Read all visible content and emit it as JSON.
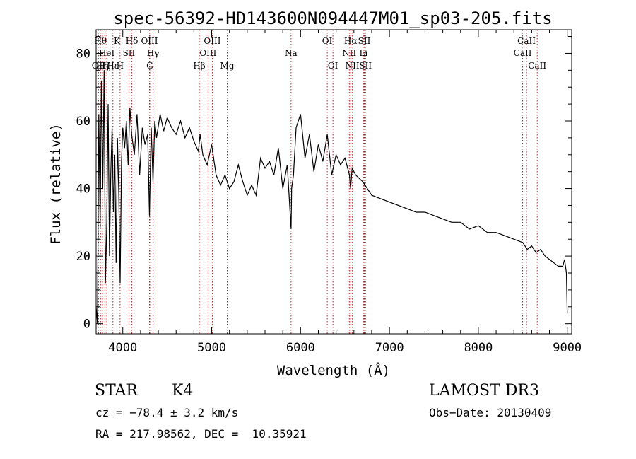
{
  "chart_data": {
    "type": "line",
    "title": "spec-56392-HD143600N094447M01_sp03-205.fits",
    "xlabel": "Wavelength (Å)",
    "ylabel": "Flux (relative)",
    "xlim": [
      3700,
      9050
    ],
    "ylim": [
      -3,
      87
    ],
    "xticks": [
      4000,
      5000,
      6000,
      7000,
      8000,
      9000
    ],
    "yticks": [
      0,
      20,
      40,
      60,
      80
    ],
    "grid": false,
    "line_color": "#000000",
    "marker_color": "#b22222",
    "spectrum": {
      "x": [
        3700,
        3715,
        3730,
        3745,
        3760,
        3775,
        3790,
        3805,
        3820,
        3835,
        3850,
        3865,
        3880,
        3895,
        3910,
        3925,
        3940,
        3955,
        3970,
        3985,
        4000,
        4020,
        4040,
        4060,
        4080,
        4100,
        4130,
        4160,
        4190,
        4220,
        4250,
        4280,
        4300,
        4320,
        4340,
        4360,
        4380,
        4420,
        4460,
        4500,
        4550,
        4600,
        4650,
        4700,
        4750,
        4800,
        4850,
        4870,
        4900,
        4950,
        5000,
        5050,
        5100,
        5150,
        5200,
        5250,
        5300,
        5350,
        5400,
        5450,
        5500,
        5550,
        5600,
        5650,
        5700,
        5750,
        5800,
        5850,
        5880,
        5893,
        5900,
        5920,
        5950,
        6000,
        6050,
        6100,
        6150,
        6200,
        6250,
        6300,
        6350,
        6400,
        6450,
        6500,
        6550,
        6563,
        6580,
        6620,
        6700,
        6800,
        6900,
        7000,
        7100,
        7200,
        7300,
        7400,
        7500,
        7600,
        7700,
        7800,
        7900,
        8000,
        8100,
        8200,
        8300,
        8400,
        8500,
        8550,
        8600,
        8650,
        8700,
        8750,
        8800,
        8850,
        8900,
        8950,
        8970,
        8990,
        9000
      ],
      "y": [
        5,
        0,
        62,
        28,
        72,
        40,
        75,
        12,
        30,
        65,
        20,
        45,
        58,
        33,
        50,
        18,
        55,
        38,
        12,
        48,
        58,
        52,
        60,
        47,
        64,
        56,
        50,
        62,
        44,
        58,
        53,
        56,
        32,
        58,
        42,
        60,
        55,
        62,
        57,
        61,
        58,
        56,
        60,
        55,
        58,
        54,
        51,
        56,
        50,
        47,
        53,
        44,
        41,
        44,
        40,
        42,
        47,
        42,
        38,
        41,
        38,
        49,
        46,
        48,
        44,
        52,
        40,
        47,
        34,
        28,
        40,
        44,
        58,
        62,
        49,
        56,
        45,
        53,
        48,
        56,
        44,
        50,
        47,
        49,
        44,
        40,
        46,
        44,
        42,
        38,
        37,
        36,
        35,
        34,
        33,
        33,
        32,
        31,
        30,
        30,
        28,
        29,
        27,
        27,
        26,
        25,
        24,
        22,
        23,
        21,
        22,
        20,
        19,
        18,
        17,
        17,
        19,
        15,
        3
      ]
    },
    "lines": [
      {
        "label": "OII",
        "x": 3727,
        "row": 3
      },
      {
        "label": "Hθ",
        "x": 3750,
        "row": 1
      },
      {
        "label": "Hη",
        "x": 3771,
        "row": 3
      },
      {
        "label": "Hζ",
        "x": 3798,
        "row": 3
      },
      {
        "label": "HeI",
        "x": 3820,
        "row": 2
      },
      {
        "label": "Hε",
        "x": 3889,
        "row": 3
      },
      {
        "label": "K",
        "x": 3934,
        "row": 1
      },
      {
        "label": "H",
        "x": 3969,
        "row": 3
      },
      {
        "label": "SII",
        "x": 4069,
        "row": 2
      },
      {
        "label": "Hδ",
        "x": 4102,
        "row": 1
      },
      {
        "label": "OIII",
        "x": 4300,
        "row": 1
      },
      {
        "label": "Hγ",
        "x": 4340,
        "row": 2
      },
      {
        "label": "G",
        "x": 4304,
        "row": 3
      },
      {
        "label": "Hβ",
        "x": 4861,
        "row": 3
      },
      {
        "label": "OIII",
        "x": 4959,
        "row": 2
      },
      {
        "label": "OIII",
        "x": 5007,
        "row": 1
      },
      {
        "label": "Mg",
        "x": 5175,
        "row": 3
      },
      {
        "label": "Na",
        "x": 5893,
        "row": 2
      },
      {
        "label": "OI",
        "x": 6300,
        "row": 1
      },
      {
        "label": "OI",
        "x": 6364,
        "row": 3
      },
      {
        "label": "NII",
        "x": 6548,
        "row": 2
      },
      {
        "label": "Hα",
        "x": 6563,
        "row": 1
      },
      {
        "label": "NII",
        "x": 6583,
        "row": 3
      },
      {
        "label": "Li",
        "x": 6708,
        "row": 2
      },
      {
        "label": "SII",
        "x": 6717,
        "row": 1
      },
      {
        "label": "SII",
        "x": 6731,
        "row": 3
      },
      {
        "label": "CaII",
        "x": 8498,
        "row": 2
      },
      {
        "label": "CaII",
        "x": 8542,
        "row": 1
      },
      {
        "label": "CaII",
        "x": 8662,
        "row": 3
      }
    ]
  },
  "info": {
    "object_class": "STAR",
    "subclass": "K4",
    "cz": "cz = −78.4 ± 3.2 km/s",
    "radec": "RA = 217.98562, DEC =  10.35921",
    "survey": "LAMOST DR3",
    "obs_date": "Obs−Date: 20130409"
  }
}
